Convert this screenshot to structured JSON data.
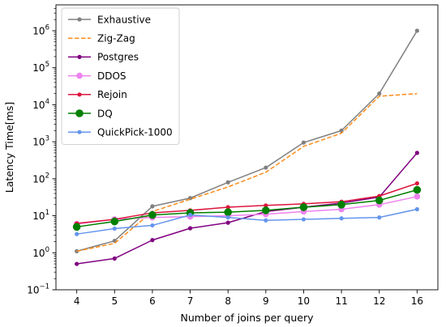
{
  "chart_data": {
    "type": "line",
    "title": "",
    "xlabel": "Number of joins per query",
    "ylabel": "Latency Time[ms]",
    "yscale": "log",
    "ylim": [
      0.1,
      5000000
    ],
    "categories": [
      "4",
      "5",
      "6",
      "7",
      "8",
      "9",
      "10",
      "11",
      "12",
      "16"
    ],
    "y_ticks": [
      {
        "value": 0.1,
        "base": "10",
        "exp": "−1"
      },
      {
        "value": 1,
        "base": "10",
        "exp": "0"
      },
      {
        "value": 10,
        "base": "10",
        "exp": "1"
      },
      {
        "value": 100,
        "base": "10",
        "exp": "2"
      },
      {
        "value": 1000,
        "base": "10",
        "exp": "3"
      },
      {
        "value": 10000,
        "base": "10",
        "exp": "4"
      },
      {
        "value": 100000,
        "base": "10",
        "exp": "5"
      },
      {
        "value": 1000000,
        "base": "10",
        "exp": "6"
      }
    ],
    "legend_position": "top-left",
    "grid": false,
    "series": [
      {
        "name": "Exhaustive",
        "color": "#808080",
        "dash": "solid",
        "marker": "circle-small",
        "values": [
          1.1,
          2.1,
          18,
          30,
          80,
          200,
          950,
          2000,
          20000,
          1000000
        ]
      },
      {
        "name": "Zig-Zag",
        "color": "#ff8c1a",
        "dash": "dashed",
        "marker": "none",
        "values": [
          1.1,
          1.8,
          13,
          28,
          60,
          150,
          750,
          1700,
          17000,
          20000
        ]
      },
      {
        "name": "Postgres",
        "color": "#800080",
        "dash": "solid",
        "marker": "circle-small",
        "values": [
          0.5,
          0.7,
          2.2,
          4.6,
          6.5,
          13,
          17,
          22,
          32,
          500
        ]
      },
      {
        "name": "DDOS",
        "color": "#ee82ee",
        "dash": "solid",
        "marker": "circle-medium",
        "values": [
          6,
          8,
          9,
          9.5,
          10,
          11,
          13,
          15,
          20,
          33
        ]
      },
      {
        "name": "Rejoin",
        "color": "#dc143c",
        "dash": "solid",
        "marker": "circle-small",
        "values": [
          6.2,
          8,
          12,
          14,
          17,
          19,
          21,
          24,
          34,
          75
        ]
      },
      {
        "name": "DQ",
        "color": "#008000",
        "dash": "solid",
        "marker": "circle-large",
        "values": [
          5,
          7,
          10.5,
          12,
          12.5,
          14,
          17,
          20,
          26,
          50
        ]
      },
      {
        "name": "QuickPick-1000",
        "color": "#6495ed",
        "dash": "solid",
        "marker": "circle-small",
        "values": [
          3.2,
          4.5,
          5.5,
          10.5,
          9,
          7.5,
          8,
          8.5,
          9,
          15
        ]
      }
    ]
  }
}
